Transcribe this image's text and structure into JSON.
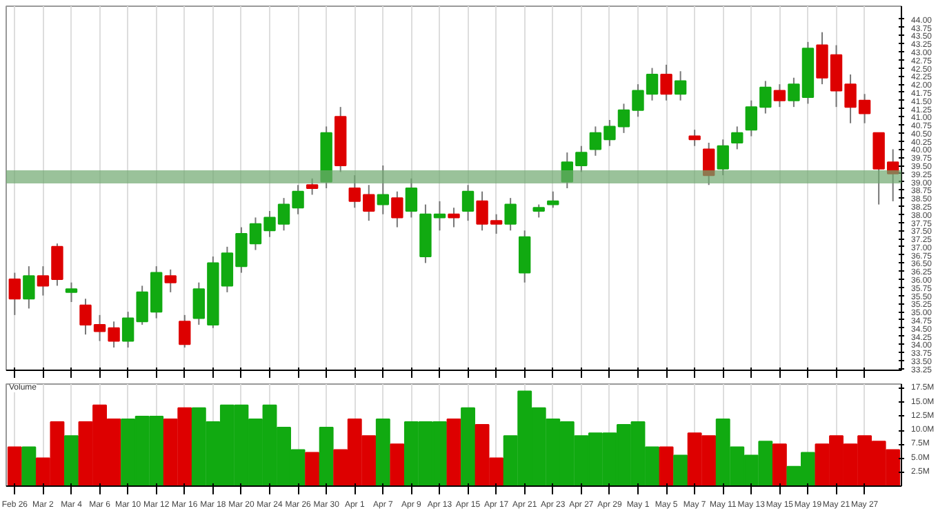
{
  "chart_data": [
    {
      "type": "candlestick",
      "categories": [
        null,
        null,
        null,
        null,
        null,
        null,
        null,
        null,
        null,
        null,
        null,
        null,
        null,
        null,
        null,
        null,
        null,
        null,
        null,
        null,
        null,
        null,
        null,
        null,
        null,
        null,
        null,
        null,
        null,
        null,
        null,
        null,
        null,
        null,
        null,
        null,
        null,
        null,
        null,
        null,
        null,
        null,
        null,
        null,
        null,
        null,
        null,
        null,
        null,
        null,
        null,
        null,
        null,
        null,
        null,
        null,
        null,
        null,
        null,
        null,
        null,
        null,
        null
      ],
      "ohlc": [
        [
          36.0,
          36.2,
          34.9,
          35.4
        ],
        [
          35.4,
          36.4,
          35.1,
          36.1
        ],
        [
          36.1,
          36.4,
          35.5,
          35.8
        ],
        [
          37.0,
          37.1,
          35.8,
          36.0
        ],
        [
          35.6,
          35.9,
          35.3,
          35.7
        ],
        [
          35.2,
          35.4,
          34.3,
          34.6
        ],
        [
          34.6,
          34.9,
          34.1,
          34.4
        ],
        [
          34.5,
          34.7,
          33.9,
          34.1
        ],
        [
          34.1,
          35.0,
          33.9,
          34.8
        ],
        [
          34.7,
          35.8,
          34.6,
          35.6
        ],
        [
          35.0,
          36.4,
          34.8,
          36.2
        ],
        [
          36.1,
          36.3,
          35.6,
          35.9
        ],
        [
          34.7,
          34.9,
          33.9,
          34.0
        ],
        [
          34.8,
          35.9,
          34.6,
          35.7
        ],
        [
          34.6,
          36.7,
          34.5,
          36.5
        ],
        [
          35.8,
          37.0,
          35.6,
          36.8
        ],
        [
          36.4,
          37.6,
          36.2,
          37.4
        ],
        [
          37.1,
          37.9,
          36.9,
          37.7
        ],
        [
          37.5,
          38.1,
          37.3,
          37.9
        ],
        [
          37.7,
          38.5,
          37.5,
          38.3
        ],
        [
          38.2,
          38.9,
          38.0,
          38.7
        ],
        [
          38.9,
          39.1,
          38.6,
          38.8
        ],
        [
          39.0,
          40.7,
          38.8,
          40.5
        ],
        [
          41.0,
          41.3,
          39.3,
          39.5
        ],
        [
          38.8,
          39.2,
          38.2,
          38.4
        ],
        [
          38.6,
          38.9,
          37.8,
          38.1
        ],
        [
          38.3,
          39.5,
          38.0,
          38.6
        ],
        [
          38.5,
          38.7,
          37.6,
          37.9
        ],
        [
          38.1,
          39.1,
          37.9,
          38.8
        ],
        [
          36.7,
          38.3,
          36.5,
          38.0
        ],
        [
          37.9,
          38.4,
          37.5,
          38.0
        ],
        [
          38.0,
          38.2,
          37.6,
          37.9
        ],
        [
          38.1,
          38.9,
          37.8,
          38.7
        ],
        [
          38.4,
          38.7,
          37.5,
          37.7
        ],
        [
          37.8,
          38.0,
          37.4,
          37.7
        ],
        [
          37.7,
          38.5,
          37.5,
          38.3
        ],
        [
          36.2,
          37.5,
          35.9,
          37.3
        ],
        [
          38.1,
          38.3,
          37.9,
          38.2
        ],
        [
          38.3,
          38.7,
          38.2,
          38.4
        ],
        [
          39.0,
          39.9,
          38.8,
          39.6
        ],
        [
          39.5,
          40.1,
          39.3,
          39.9
        ],
        [
          40.0,
          40.7,
          39.8,
          40.5
        ],
        [
          40.3,
          40.9,
          40.1,
          40.7
        ],
        [
          40.7,
          41.4,
          40.5,
          41.2
        ],
        [
          41.2,
          42.0,
          41.0,
          41.8
        ],
        [
          41.7,
          42.5,
          41.5,
          42.3
        ],
        [
          42.3,
          42.6,
          41.5,
          41.7
        ],
        [
          41.7,
          42.4,
          41.5,
          42.1
        ],
        [
          40.4,
          40.6,
          40.1,
          40.3
        ],
        [
          40.0,
          40.2,
          38.9,
          39.2
        ],
        [
          39.4,
          40.3,
          39.2,
          40.1
        ],
        [
          40.2,
          40.7,
          40.0,
          40.5
        ],
        [
          40.6,
          41.5,
          40.4,
          41.3
        ],
        [
          41.3,
          42.1,
          41.1,
          41.9
        ],
        [
          41.8,
          42.0,
          41.3,
          41.5
        ],
        [
          41.5,
          42.2,
          41.3,
          42.0
        ],
        [
          41.6,
          43.3,
          41.4,
          43.1
        ],
        [
          43.2,
          43.6,
          42.0,
          42.2
        ],
        [
          42.9,
          43.2,
          41.3,
          41.8
        ],
        [
          42.0,
          42.3,
          40.8,
          41.3
        ],
        [
          41.5,
          41.7,
          40.8,
          41.1
        ],
        [
          40.5,
          40.5,
          38.3,
          39.4
        ],
        [
          39.6,
          40.0,
          38.4,
          39.25
        ]
      ],
      "colors": [
        "#dd0000",
        "#11aa11",
        "#dd0000",
        "#dd0000",
        "#11aa11",
        "#dd0000",
        "#dd0000",
        "#dd0000",
        "#11aa11",
        "#11aa11",
        "#11aa11",
        "#dd0000",
        "#dd0000",
        "#11aa11",
        "#11aa11",
        "#11aa11",
        "#11aa11",
        "#11aa11",
        "#11aa11",
        "#11aa11",
        "#11aa11",
        "#dd0000",
        "#11aa11",
        "#dd0000",
        "#dd0000",
        "#dd0000",
        "#11aa11",
        "#dd0000",
        "#11aa11",
        "#11aa11",
        "#11aa11",
        "#dd0000",
        "#11aa11",
        "#dd0000",
        "#dd0000",
        "#11aa11",
        "#11aa11",
        "#11aa11",
        "#11aa11",
        "#11aa11",
        "#11aa11",
        "#11aa11",
        "#11aa11",
        "#11aa11",
        "#11aa11",
        "#11aa11",
        "#dd0000",
        "#11aa11",
        "#dd0000",
        "#dd0000",
        "#11aa11",
        "#11aa11",
        "#11aa11",
        "#11aa11",
        "#dd0000",
        "#11aa11",
        "#11aa11",
        "#dd0000",
        "#dd0000",
        "#dd0000",
        "#dd0000",
        "#dd0000",
        "#dd0000"
      ],
      "ylim": [
        33.2,
        44.4
      ],
      "yticks": [
        {
          "value": 33.25,
          "label": "33.25"
        },
        {
          "value": 33.5,
          "label": "33.50"
        },
        {
          "value": 33.75,
          "label": "33.75"
        },
        {
          "value": 34,
          "label": "34.00"
        },
        {
          "value": 34.25,
          "label": "34.25"
        },
        {
          "value": 34.5,
          "label": "34.50"
        },
        {
          "value": 34.75,
          "label": "34.75"
        },
        {
          "value": 35,
          "label": "35.00"
        },
        {
          "value": 35.25,
          "label": "35.25"
        },
        {
          "value": 35.5,
          "label": "35.50"
        },
        {
          "value": 35.75,
          "label": "35.75"
        },
        {
          "value": 36,
          "label": "36.00"
        },
        {
          "value": 36.25,
          "label": "36.25"
        },
        {
          "value": 36.5,
          "label": "36.50"
        },
        {
          "value": 36.75,
          "label": "36.75"
        },
        {
          "value": 37,
          "label": "37.00"
        },
        {
          "value": 37.25,
          "label": "37.25"
        },
        {
          "value": 37.5,
          "label": "37.50"
        },
        {
          "value": 37.75,
          "label": "37.75"
        },
        {
          "value": 38,
          "label": "38.00"
        },
        {
          "value": 38.25,
          "label": "38.25"
        },
        {
          "value": 38.5,
          "label": "38.50"
        },
        {
          "value": 38.75,
          "label": "38.75"
        },
        {
          "value": 39,
          "label": "39.00"
        },
        {
          "value": 39.25,
          "label": "39.25"
        },
        {
          "value": 39.5,
          "label": "39.50"
        },
        {
          "value": 39.75,
          "label": "39.75"
        },
        {
          "value": 40,
          "label": "40.00"
        },
        {
          "value": 40.25,
          "label": "40.25"
        },
        {
          "value": 40.5,
          "label": "40.50"
        },
        {
          "value": 40.75,
          "label": "40.75"
        },
        {
          "value": 41,
          "label": "41.00"
        },
        {
          "value": 41.25,
          "label": "41.25"
        },
        {
          "value": 41.5,
          "label": "41.50"
        },
        {
          "value": 41.75,
          "label": "41.75"
        },
        {
          "value": 42,
          "label": "42.00"
        },
        {
          "value": 42.25,
          "label": "42.25"
        },
        {
          "value": 42.5,
          "label": "42.50"
        },
        {
          "value": 42.75,
          "label": "42.75"
        },
        {
          "value": 43,
          "label": "43.00"
        },
        {
          "value": 43.25,
          "label": "43.25"
        },
        {
          "value": 43.5,
          "label": "43.50"
        },
        {
          "value": 43.75,
          "label": "43.75"
        },
        {
          "value": 44,
          "label": "44.00"
        }
      ],
      "bands": [
        {
          "axis": "y",
          "from": 38.95,
          "to": 39.35,
          "color": "#6fa86f"
        }
      ],
      "grid": "x",
      "tick_labels": "y"
    },
    {
      "type": "bar",
      "categories": [
        "Feb 26",
        null,
        "Mar 2",
        null,
        "Mar 4",
        null,
        "Mar 6",
        null,
        "Mar 10",
        null,
        "Mar 12",
        null,
        "Mar 16",
        null,
        "Mar 18",
        null,
        "Mar 20",
        null,
        "Mar 24",
        null,
        "Mar 26",
        null,
        "Mar 30",
        null,
        "Apr 1",
        null,
        "Apr 7",
        null,
        "Apr 9",
        null,
        "Apr 13",
        null,
        "Apr 15",
        null,
        "Apr 17",
        null,
        "Apr 21",
        null,
        "Apr 23",
        null,
        "Apr 27",
        null,
        "Apr 29",
        null,
        "May 1",
        null,
        "May 5",
        null,
        "May 7",
        null,
        "May 11",
        null,
        "May 13",
        null,
        "May 15",
        null,
        "May 19",
        null,
        "May 21",
        null,
        "May 27",
        null,
        null
      ],
      "values": [
        7.0,
        7.0,
        5.0,
        11.5,
        9.0,
        11.5,
        14.5,
        12.0,
        12.0,
        12.5,
        12.5,
        12.0,
        14.0,
        14.0,
        11.5,
        14.5,
        14.5,
        12.0,
        14.5,
        10.5,
        6.5,
        6.0,
        10.5,
        6.5,
        12.0,
        9.0,
        12.0,
        7.5,
        11.5,
        11.5,
        11.5,
        12.0,
        14.0,
        11.0,
        5.0,
        9.0,
        17.0,
        14.0,
        12.0,
        11.5,
        9.0,
        9.5,
        9.5,
        11.0,
        11.5,
        7.0,
        7.0,
        5.5,
        9.5,
        9.0,
        12.0,
        7.0,
        5.5,
        8.0,
        7.5,
        3.5,
        6.0,
        7.5,
        9.0,
        7.5,
        9.0,
        8.0,
        6.5
      ],
      "colors": [
        "#dd0000",
        "#11aa11",
        "#dd0000",
        "#dd0000",
        "#11aa11",
        "#dd0000",
        "#dd0000",
        "#dd0000",
        "#11aa11",
        "#11aa11",
        "#11aa11",
        "#dd0000",
        "#dd0000",
        "#11aa11",
        "#11aa11",
        "#11aa11",
        "#11aa11",
        "#11aa11",
        "#11aa11",
        "#11aa11",
        "#11aa11",
        "#dd0000",
        "#11aa11",
        "#dd0000",
        "#dd0000",
        "#dd0000",
        "#11aa11",
        "#dd0000",
        "#11aa11",
        "#11aa11",
        "#11aa11",
        "#dd0000",
        "#11aa11",
        "#dd0000",
        "#dd0000",
        "#11aa11",
        "#11aa11",
        "#11aa11",
        "#11aa11",
        "#11aa11",
        "#11aa11",
        "#11aa11",
        "#11aa11",
        "#11aa11",
        "#11aa11",
        "#11aa11",
        "#dd0000",
        "#11aa11",
        "#dd0000",
        "#dd0000",
        "#11aa11",
        "#11aa11",
        "#11aa11",
        "#11aa11",
        "#dd0000",
        "#11aa11",
        "#11aa11",
        "#dd0000",
        "#dd0000",
        "#dd0000",
        "#dd0000",
        "#dd0000",
        "#dd0000"
      ],
      "ylim": [
        0,
        18.3
      ],
      "yticks": [
        {
          "value": 2.5,
          "label": "2.5M"
        },
        {
          "value": 5,
          "label": "5.0M"
        },
        {
          "value": 7.5,
          "label": "7.5M"
        },
        {
          "value": 10,
          "label": "10.0M"
        },
        {
          "value": 12.5,
          "label": "12.5M"
        },
        {
          "value": 15,
          "label": "15.0M"
        },
        {
          "value": 17.5,
          "label": "17.5M"
        }
      ],
      "annotations": [
        "Volume"
      ],
      "grid": "x"
    }
  ]
}
